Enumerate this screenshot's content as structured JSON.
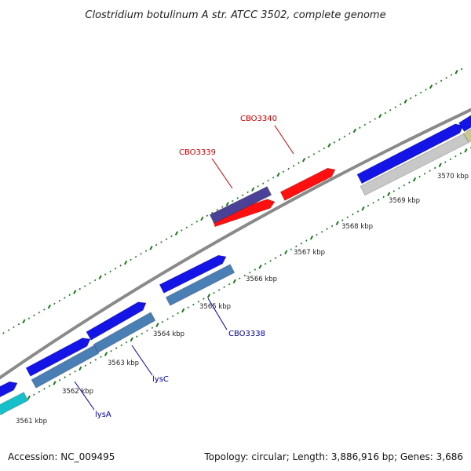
{
  "title": "Clostridium botulinum A str. ATCC 3502, complete genome",
  "footer": {
    "accession": "Accession: NC_009495",
    "summary": "Topology: circular; Length: 3,886,916 bp; Genes: 3,686"
  },
  "colors": {
    "backbone": "#8a8a8a",
    "tick": "#1a7a1a",
    "forward_gene": "#1414e6",
    "reverse_gene": "#4a7fb5",
    "highlight_red": "#ff1010",
    "highlight_purple": "#4b4196",
    "gray_gene": "#c8c8c8",
    "cyan_gene": "#17c0c8",
    "label_red": "#cc0000",
    "label_blue": "#0000aa"
  },
  "scale_labels": [
    "3561 kbp",
    "3562 kbp",
    "3563 kbp",
    "3564 kbp",
    "3565 kbp",
    "3566 kbp",
    "3567 kbp",
    "3568 kbp",
    "3569 kbp",
    "3570 kbp"
  ],
  "gene_labels": [
    {
      "text": "CBO3340",
      "color": "red"
    },
    {
      "text": "CBO3339",
      "color": "red"
    },
    {
      "text": "CBO3338",
      "color": "blue"
    },
    {
      "text": "lysC",
      "color": "blue"
    },
    {
      "text": "lysA",
      "color": "blue"
    }
  ]
}
